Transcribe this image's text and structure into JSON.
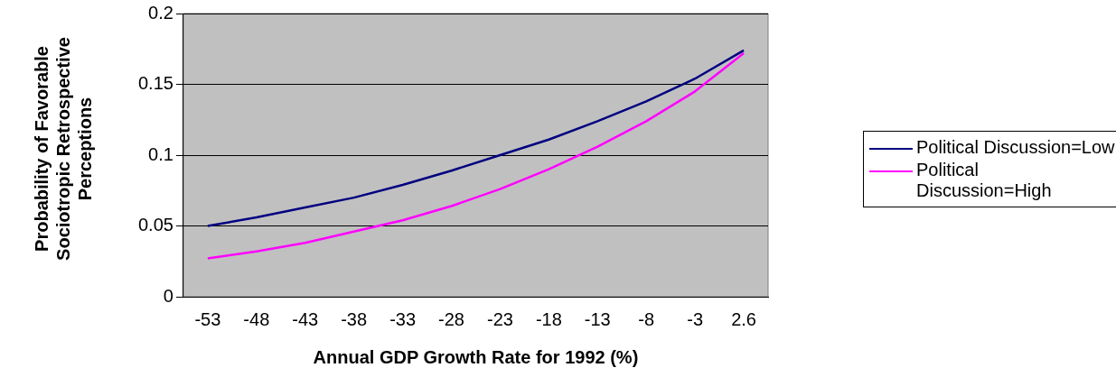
{
  "chart_data": {
    "type": "line",
    "xlabel": "Annual GDP Growth Rate for 1992 (%)",
    "ylabel": "Probability of Favorable Sociotropic Retrospective Perceptions",
    "categories": [
      "-53",
      "-48",
      "-43",
      "-38",
      "-33",
      "-28",
      "-23",
      "-18",
      "-13",
      "-8",
      "-3",
      "2.6"
    ],
    "series": [
      {
        "name": "Political Discussion=Low",
        "color": "#000080",
        "values": [
          0.05,
          0.056,
          0.063,
          0.07,
          0.079,
          0.089,
          0.1,
          0.111,
          0.124,
          0.138,
          0.154,
          0.174
        ]
      },
      {
        "name": "Political Discussion=High",
        "color": "#ff00ff",
        "values": [
          0.027,
          0.032,
          0.038,
          0.046,
          0.054,
          0.064,
          0.076,
          0.09,
          0.106,
          0.124,
          0.145,
          0.172
        ]
      }
    ],
    "ylim": [
      0,
      0.2
    ],
    "yticks": [
      0,
      0.05,
      0.1,
      0.15,
      0.2
    ],
    "grid": "y",
    "legend": "right",
    "marker": "none",
    "line_style": "solid"
  }
}
